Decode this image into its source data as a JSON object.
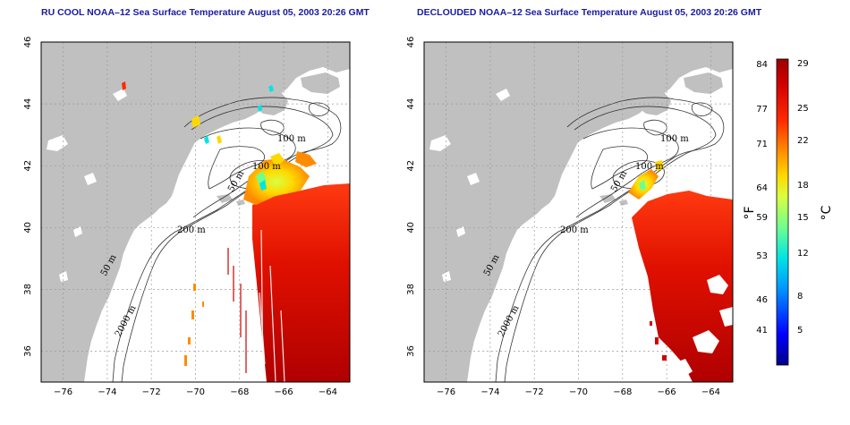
{
  "panels": [
    {
      "id": "ru-cool",
      "title": "RU COOL NOAA–12 Sea Surface Temperature August 05, 2003 20:26 GMT",
      "contour_labels": [
        "100 m",
        "100 m",
        "50 m",
        "200 m",
        "50 m",
        "2000 m"
      ]
    },
    {
      "id": "declouded",
      "title": "DECLOUDED NOAA–12 Sea Surface Temperature August 05, 2003 20:26 GMT",
      "contour_labels": [
        "100 m",
        "100 m",
        "50 m",
        "200 m",
        "50 m",
        "2000 m"
      ]
    }
  ],
  "axes": {
    "lon_ticks": [
      "−76",
      "−74",
      "−72",
      "−70",
      "−68",
      "−66",
      "−64"
    ],
    "lat_ticks": [
      "36",
      "38",
      "40",
      "42",
      "44",
      "46"
    ],
    "lon_range": [
      -77,
      -63
    ],
    "lat_range": [
      35,
      46
    ]
  },
  "colorbar": {
    "fahrenheit_ticks": [
      "84",
      "77",
      "71",
      "64",
      "59",
      "53",
      "46",
      "41"
    ],
    "celsius_ticks": [
      "29",
      "25",
      "22",
      "18",
      "15",
      "12",
      "8",
      "5"
    ],
    "fahrenheit_unit": "°F",
    "celsius_unit": "°C",
    "colors": [
      "#00008b",
      "#0000ff",
      "#0096ff",
      "#00e5e5",
      "#6fff8f",
      "#d9ff3f",
      "#ffd800",
      "#ff8c00",
      "#ff2a00",
      "#d10000",
      "#9c0000"
    ]
  },
  "colors": {
    "land": "#c0c0c0",
    "ocean": "#ffffff",
    "grid": "#9a9a9a",
    "title": "#1a1aa0"
  }
}
